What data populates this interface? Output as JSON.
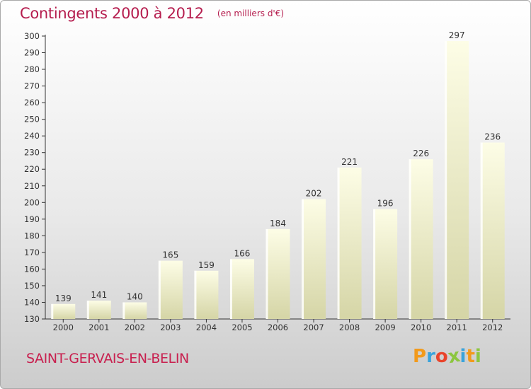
{
  "header": {
    "title": "Contingents 2000 à 2012",
    "unit": "(en milliers d'€)"
  },
  "footer": {
    "commune": "SAINT-GERVAIS-EN-BELIN",
    "logo": {
      "letters": [
        "P",
        "r",
        "o",
        "x",
        "i",
        "t",
        "i"
      ],
      "colors": [
        "#f29a1b",
        "#3aa3db",
        "#e9442b",
        "#8cc63f",
        "#3aa3db",
        "#f29a1b",
        "#8cc63f"
      ]
    }
  },
  "colors": {
    "bar_top": "#fdfde6",
    "bar_bottom": "#d5d5a6",
    "axis": "#333333",
    "title": "#b51d4e"
  },
  "chart_data": {
    "type": "bar",
    "title": "Contingents 2000 à 2012",
    "subtitle": "(en milliers d'€)",
    "categories": [
      "2000",
      "2001",
      "2002",
      "2003",
      "2004",
      "2005",
      "2006",
      "2007",
      "2008",
      "2009",
      "2010",
      "2011",
      "2012"
    ],
    "values": [
      139,
      141,
      140,
      165,
      159,
      166,
      184,
      202,
      221,
      196,
      226,
      297,
      236
    ],
    "ylim": [
      130,
      300
    ],
    "yticks": [
      130,
      140,
      150,
      160,
      170,
      180,
      190,
      200,
      210,
      220,
      230,
      240,
      250,
      260,
      270,
      280,
      290,
      300
    ],
    "data_labels": true,
    "grid": false,
    "legend": "none"
  }
}
